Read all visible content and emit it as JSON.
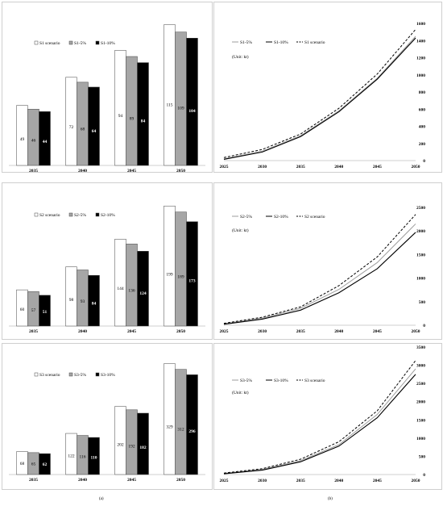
{
  "charts": [
    {
      "type": "bar",
      "categories": [
        "2035",
        "2040",
        "2045",
        "2050"
      ],
      "series": [
        {
          "name": "S1 scenario",
          "values": [
            49,
            72,
            94,
            115
          ],
          "fill": "#ffffff"
        },
        {
          "name": "S1-5%",
          "values": [
            46,
            68,
            89,
            109
          ],
          "fill": "#a6a6a6"
        },
        {
          "name": "S1-10%",
          "values": [
            44,
            64,
            84,
            104
          ],
          "fill": "#000000"
        }
      ],
      "ylim": [
        0,
        120
      ]
    },
    {
      "type": "line",
      "x": [
        "2025",
        "2030",
        "2035",
        "2040",
        "2045",
        "2050"
      ],
      "series": [
        {
          "name": "S1-5%",
          "values": [
            20,
            110,
            290,
            580,
            960,
            1450
          ],
          "style": "solid-gray"
        },
        {
          "name": "S1-10%",
          "values": [
            15,
            100,
            280,
            570,
            950,
            1430
          ],
          "style": "solid-black"
        },
        {
          "name": "S1 scenario",
          "values": [
            35,
            130,
            310,
            610,
            1010,
            1530
          ],
          "style": "dashed"
        }
      ],
      "unit": "(Unit: kt)",
      "yticks": [
        "0",
        "200",
        "400",
        "600",
        "800",
        "1000",
        "1200",
        "1400",
        "1600"
      ],
      "ylim": [
        0,
        1600
      ]
    },
    {
      "type": "bar",
      "categories": [
        "2035",
        "2040",
        "2045",
        "2050"
      ],
      "series": [
        {
          "name": "S2 scenario",
          "values": [
            60,
            98,
            144,
            199
          ],
          "fill": "#ffffff"
        },
        {
          "name": "S2-5%",
          "values": [
            57,
            93,
            136,
            189
          ],
          "fill": "#a6a6a6"
        },
        {
          "name": "S2-10%",
          "values": [
            51,
            84,
            124,
            173
          ],
          "fill": "#000000"
        }
      ],
      "ylim": [
        0,
        210
      ]
    },
    {
      "type": "line",
      "x": [
        "2025",
        "2030",
        "2035",
        "2040",
        "2045",
        "2050"
      ],
      "series": [
        {
          "name": "S2-5%",
          "values": [
            30,
            150,
            360,
            760,
            1330,
            2150
          ],
          "style": "solid-gray"
        },
        {
          "name": "S2-10%",
          "values": [
            20,
            130,
            320,
            690,
            1200,
            1970
          ],
          "style": "solid-black"
        },
        {
          "name": "S2 scenario",
          "values": [
            40,
            170,
            390,
            840,
            1450,
            2350
          ],
          "style": "dashed"
        }
      ],
      "unit": "(Unit: kt)",
      "yticks": [
        "0",
        "500",
        "1000",
        "1500",
        "2000",
        "2500"
      ],
      "ylim": [
        0,
        2500
      ]
    },
    {
      "type": "bar",
      "categories": [
        "2035",
        "2040",
        "2045",
        "2050"
      ],
      "series": [
        {
          "name": "S3 scenario",
          "values": [
            68,
            122,
            202,
            329
          ],
          "fill": "#ffffff"
        },
        {
          "name": "S3-5%",
          "values": [
            65,
            116,
            192,
            312
          ],
          "fill": "#a6a6a6"
        },
        {
          "name": "S3-10%",
          "values": [
            62,
            110,
            182,
            296
          ],
          "fill": "#000000"
        }
      ],
      "ylim": [
        0,
        340
      ]
    },
    {
      "type": "line",
      "x": [
        "2025",
        "2030",
        "2035",
        "2040",
        "2045",
        "2050"
      ],
      "series": [
        {
          "name": "S3-5%",
          "values": [
            30,
            140,
            380,
            820,
            1650,
            2900
          ],
          "style": "solid-gray"
        },
        {
          "name": "S3-10%",
          "values": [
            20,
            120,
            350,
            780,
            1560,
            2750
          ],
          "style": "solid-black"
        },
        {
          "name": "S3 scenario",
          "values": [
            40,
            160,
            420,
            900,
            1750,
            3130
          ],
          "style": "dashed"
        }
      ],
      "unit": "(Unit: kt)",
      "yticks": [
        "0",
        "500",
        "1000",
        "1500",
        "2000",
        "2500",
        "3000",
        "3500"
      ],
      "ylim": [
        0,
        3500
      ]
    }
  ],
  "captions": {
    "left": "(a)",
    "right": "(b)"
  },
  "colors": {
    "gray_line": "#9e9e9e",
    "black": "#000000",
    "panel_border": "#cfcfcf"
  }
}
